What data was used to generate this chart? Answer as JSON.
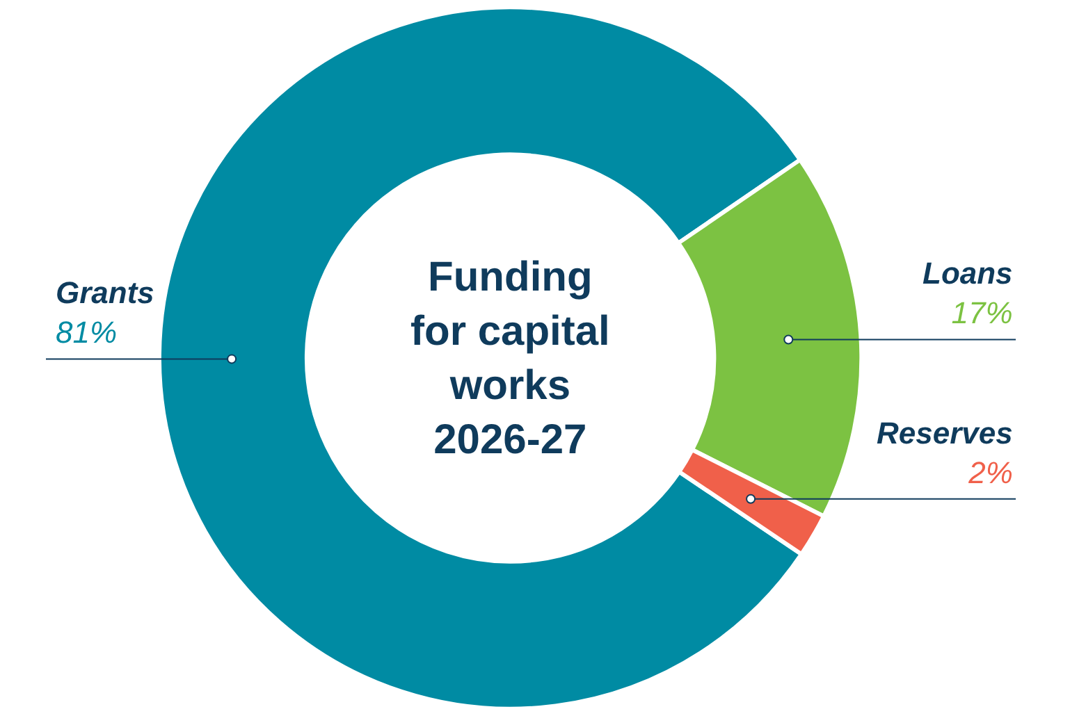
{
  "chart_data": {
    "type": "donut",
    "title": "Funding\nfor capital\nworks\n2026-27",
    "categories": [
      "Grants",
      "Loans",
      "Reserves"
    ],
    "values": [
      81,
      17,
      2
    ],
    "value_labels": [
      "81%",
      "17%",
      "2%"
    ],
    "colors": [
      "#008ba3",
      "#7cc242",
      "#f0604a"
    ],
    "legend": false
  }
}
